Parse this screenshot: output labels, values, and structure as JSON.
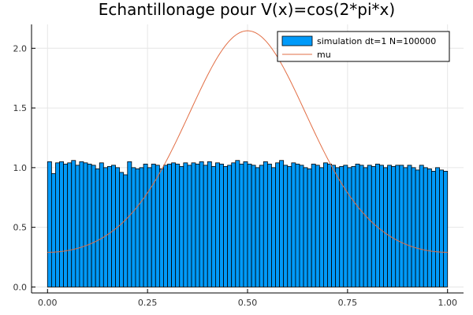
{
  "chart_data": {
    "type": "bar",
    "title": "Echantillonage pour V(x)=cos(2*pi*x)",
    "xlabel": "",
    "ylabel": "",
    "xlim": [
      -0.04,
      1.04
    ],
    "ylim": [
      -0.05,
      2.2
    ],
    "x_ticks": [
      "0.00",
      "0.25",
      "0.50",
      "0.75",
      "1.00"
    ],
    "y_ticks": [
      "0.0",
      "0.5",
      "1.0",
      "1.5",
      "2.0"
    ],
    "grid": true,
    "legend_position": "top-right",
    "bin_width": 0.01,
    "series": [
      {
        "name": "simulation dt=1 N=100000",
        "kind": "histogram",
        "color": "#009af9",
        "bin_start": 0.0,
        "values": [
          1.05,
          0.95,
          1.04,
          1.05,
          1.03,
          1.04,
          1.06,
          1.02,
          1.05,
          1.04,
          1.03,
          1.02,
          0.99,
          1.04,
          1.0,
          1.01,
          1.02,
          1.0,
          0.96,
          0.94,
          1.05,
          1.0,
          0.99,
          1.0,
          1.03,
          1.0,
          1.03,
          1.02,
          0.99,
          1.02,
          1.03,
          1.04,
          1.03,
          1.01,
          1.04,
          1.02,
          1.04,
          1.03,
          1.05,
          1.02,
          1.05,
          1.01,
          1.04,
          1.03,
          1.01,
          1.02,
          1.04,
          1.06,
          1.03,
          1.05,
          1.03,
          1.02,
          1.0,
          1.02,
          1.05,
          1.03,
          1.0,
          1.04,
          1.06,
          1.02,
          1.01,
          1.04,
          1.03,
          1.02,
          1.0,
          0.99,
          1.03,
          1.02,
          1.0,
          1.04,
          1.03,
          1.02,
          1.0,
          1.01,
          1.02,
          1.0,
          1.01,
          1.03,
          1.02,
          1.0,
          1.02,
          1.01,
          1.03,
          1.02,
          1.0,
          1.02,
          1.01,
          1.02,
          1.02,
          1.0,
          1.02,
          1.0,
          0.98,
          1.02,
          1.0,
          0.99,
          0.97,
          1.0,
          0.98,
          0.97
        ]
      },
      {
        "name": "mu",
        "kind": "line",
        "color": "#e26f46",
        "formula": "exp(-cos(2*pi*x)) / 1.2661",
        "x_range": [
          0,
          1
        ]
      }
    ]
  }
}
